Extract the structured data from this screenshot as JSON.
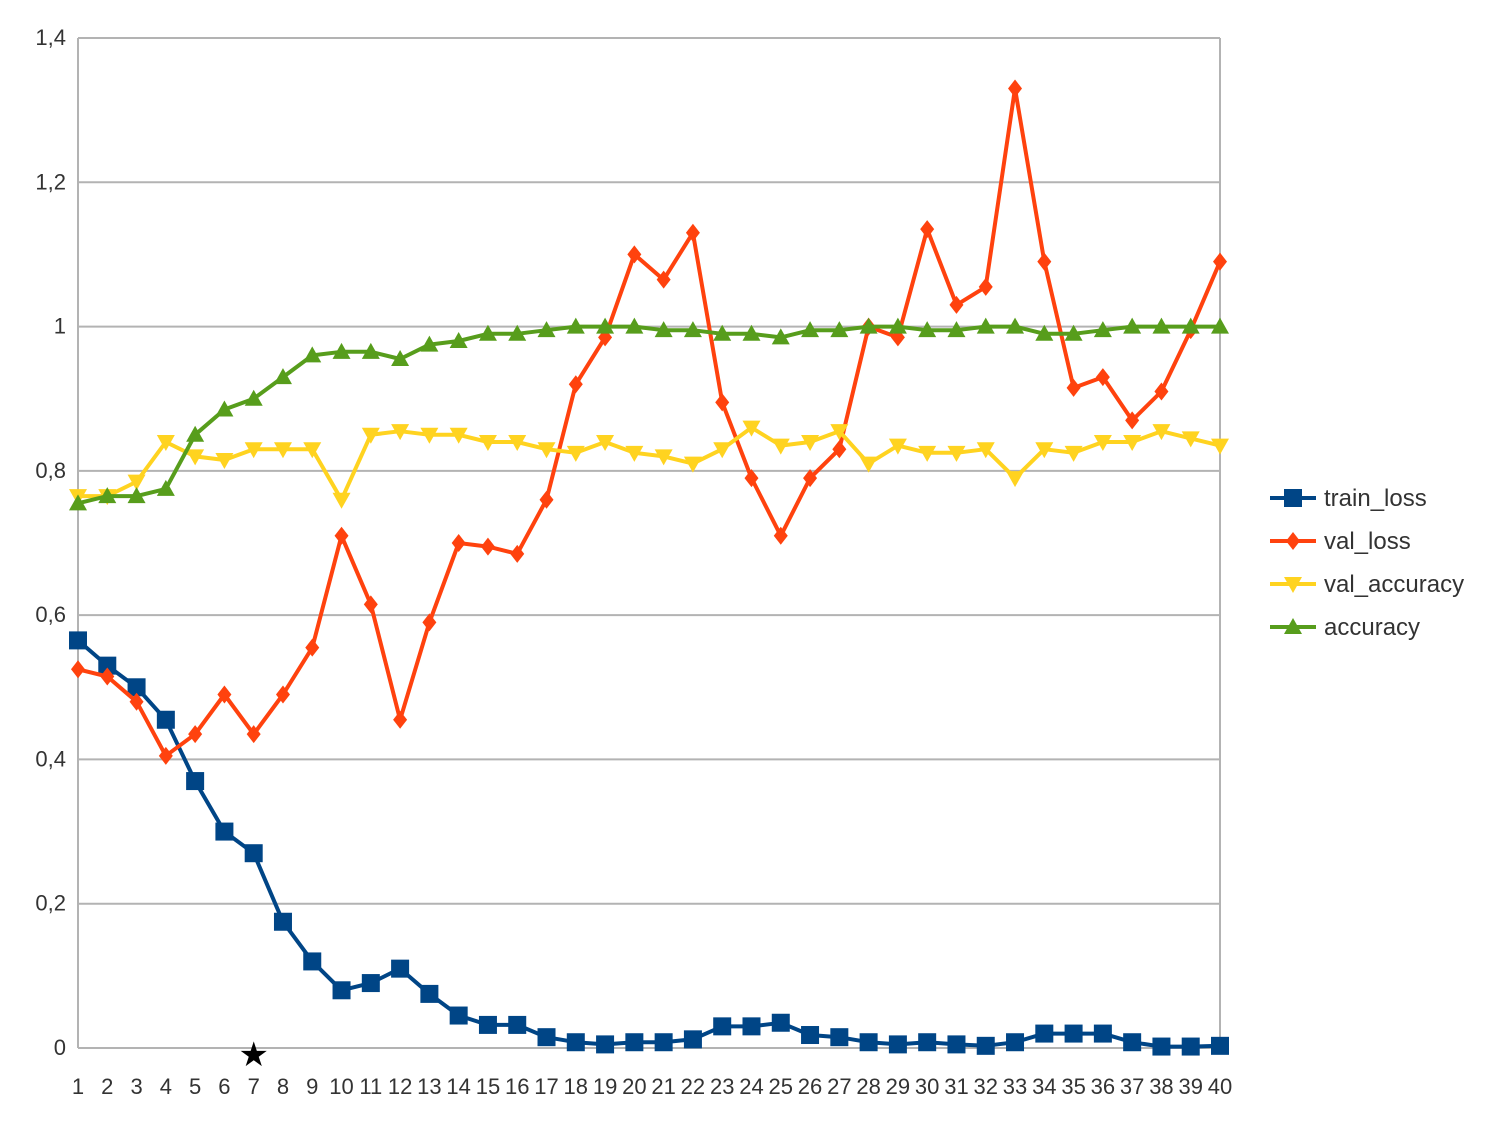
{
  "chart_data": {
    "type": "line",
    "title": "",
    "xlabel": "",
    "ylabel": "",
    "x": [
      1,
      2,
      3,
      4,
      5,
      6,
      7,
      8,
      9,
      10,
      11,
      12,
      13,
      14,
      15,
      16,
      17,
      18,
      19,
      20,
      21,
      22,
      23,
      24,
      25,
      26,
      27,
      28,
      29,
      30,
      31,
      32,
      33,
      34,
      35,
      36,
      37,
      38,
      39,
      40
    ],
    "ylim": [
      0,
      1.4
    ],
    "y_ticks": [
      0,
      0.2,
      0.4,
      0.6,
      0.8,
      1,
      1.2,
      1.4
    ],
    "y_tick_labels": [
      "0",
      "0,2",
      "0,4",
      "0,6",
      "0,8",
      "1",
      "1,2",
      "1,4"
    ],
    "grid": true,
    "legend_position": "right",
    "marker_annotation": {
      "x": 7,
      "symbol": "★"
    },
    "series": [
      {
        "name": "train_loss",
        "color": "#004586",
        "marker": "square",
        "values": [
          0.565,
          0.53,
          0.5,
          0.455,
          0.37,
          0.3,
          0.27,
          0.175,
          0.12,
          0.08,
          0.09,
          0.11,
          0.075,
          0.045,
          0.032,
          0.032,
          0.015,
          0.008,
          0.005,
          0.008,
          0.008,
          0.012,
          0.03,
          0.03,
          0.035,
          0.018,
          0.015,
          0.008,
          0.005,
          0.008,
          0.005,
          0.003,
          0.008,
          0.02,
          0.02,
          0.02,
          0.008,
          0.002,
          0.002,
          0.003
        ]
      },
      {
        "name": "val_loss",
        "color": "#ff420e",
        "marker": "diamond",
        "values": [
          0.525,
          0.515,
          0.48,
          0.405,
          0.435,
          0.49,
          0.435,
          0.49,
          0.555,
          0.71,
          0.615,
          0.455,
          0.59,
          0.7,
          0.695,
          0.685,
          0.76,
          0.92,
          0.985,
          1.1,
          1.065,
          1.13,
          0.895,
          0.79,
          0.71,
          0.79,
          0.83,
          1.0,
          0.985,
          1.135,
          1.03,
          1.055,
          1.33,
          1.09,
          0.915,
          0.93,
          0.87,
          0.91,
          0.995,
          1.09
        ]
      },
      {
        "name": "val_accuracy",
        "color": "#ffd320",
        "marker": "triangle-down",
        "values": [
          0.765,
          0.765,
          0.785,
          0.84,
          0.82,
          0.815,
          0.83,
          0.83,
          0.83,
          0.76,
          0.85,
          0.855,
          0.85,
          0.85,
          0.84,
          0.84,
          0.83,
          0.825,
          0.84,
          0.825,
          0.82,
          0.81,
          0.83,
          0.86,
          0.835,
          0.84,
          0.855,
          0.81,
          0.835,
          0.825,
          0.825,
          0.83,
          0.79,
          0.83,
          0.825,
          0.84,
          0.84,
          0.855,
          0.845,
          0.835
        ]
      },
      {
        "name": "accuracy",
        "color": "#579d1c",
        "marker": "triangle-up",
        "values": [
          0.755,
          0.765,
          0.765,
          0.775,
          0.85,
          0.885,
          0.9,
          0.93,
          0.96,
          0.965,
          0.965,
          0.955,
          0.975,
          0.98,
          0.99,
          0.99,
          0.995,
          1.0,
          1.0,
          1.0,
          0.995,
          0.995,
          0.99,
          0.99,
          0.985,
          0.995,
          0.995,
          1.0,
          1.0,
          0.995,
          0.995,
          1.0,
          1.0,
          0.99,
          0.99,
          0.995,
          1.0,
          1.0,
          1.0,
          1.0
        ]
      }
    ]
  }
}
